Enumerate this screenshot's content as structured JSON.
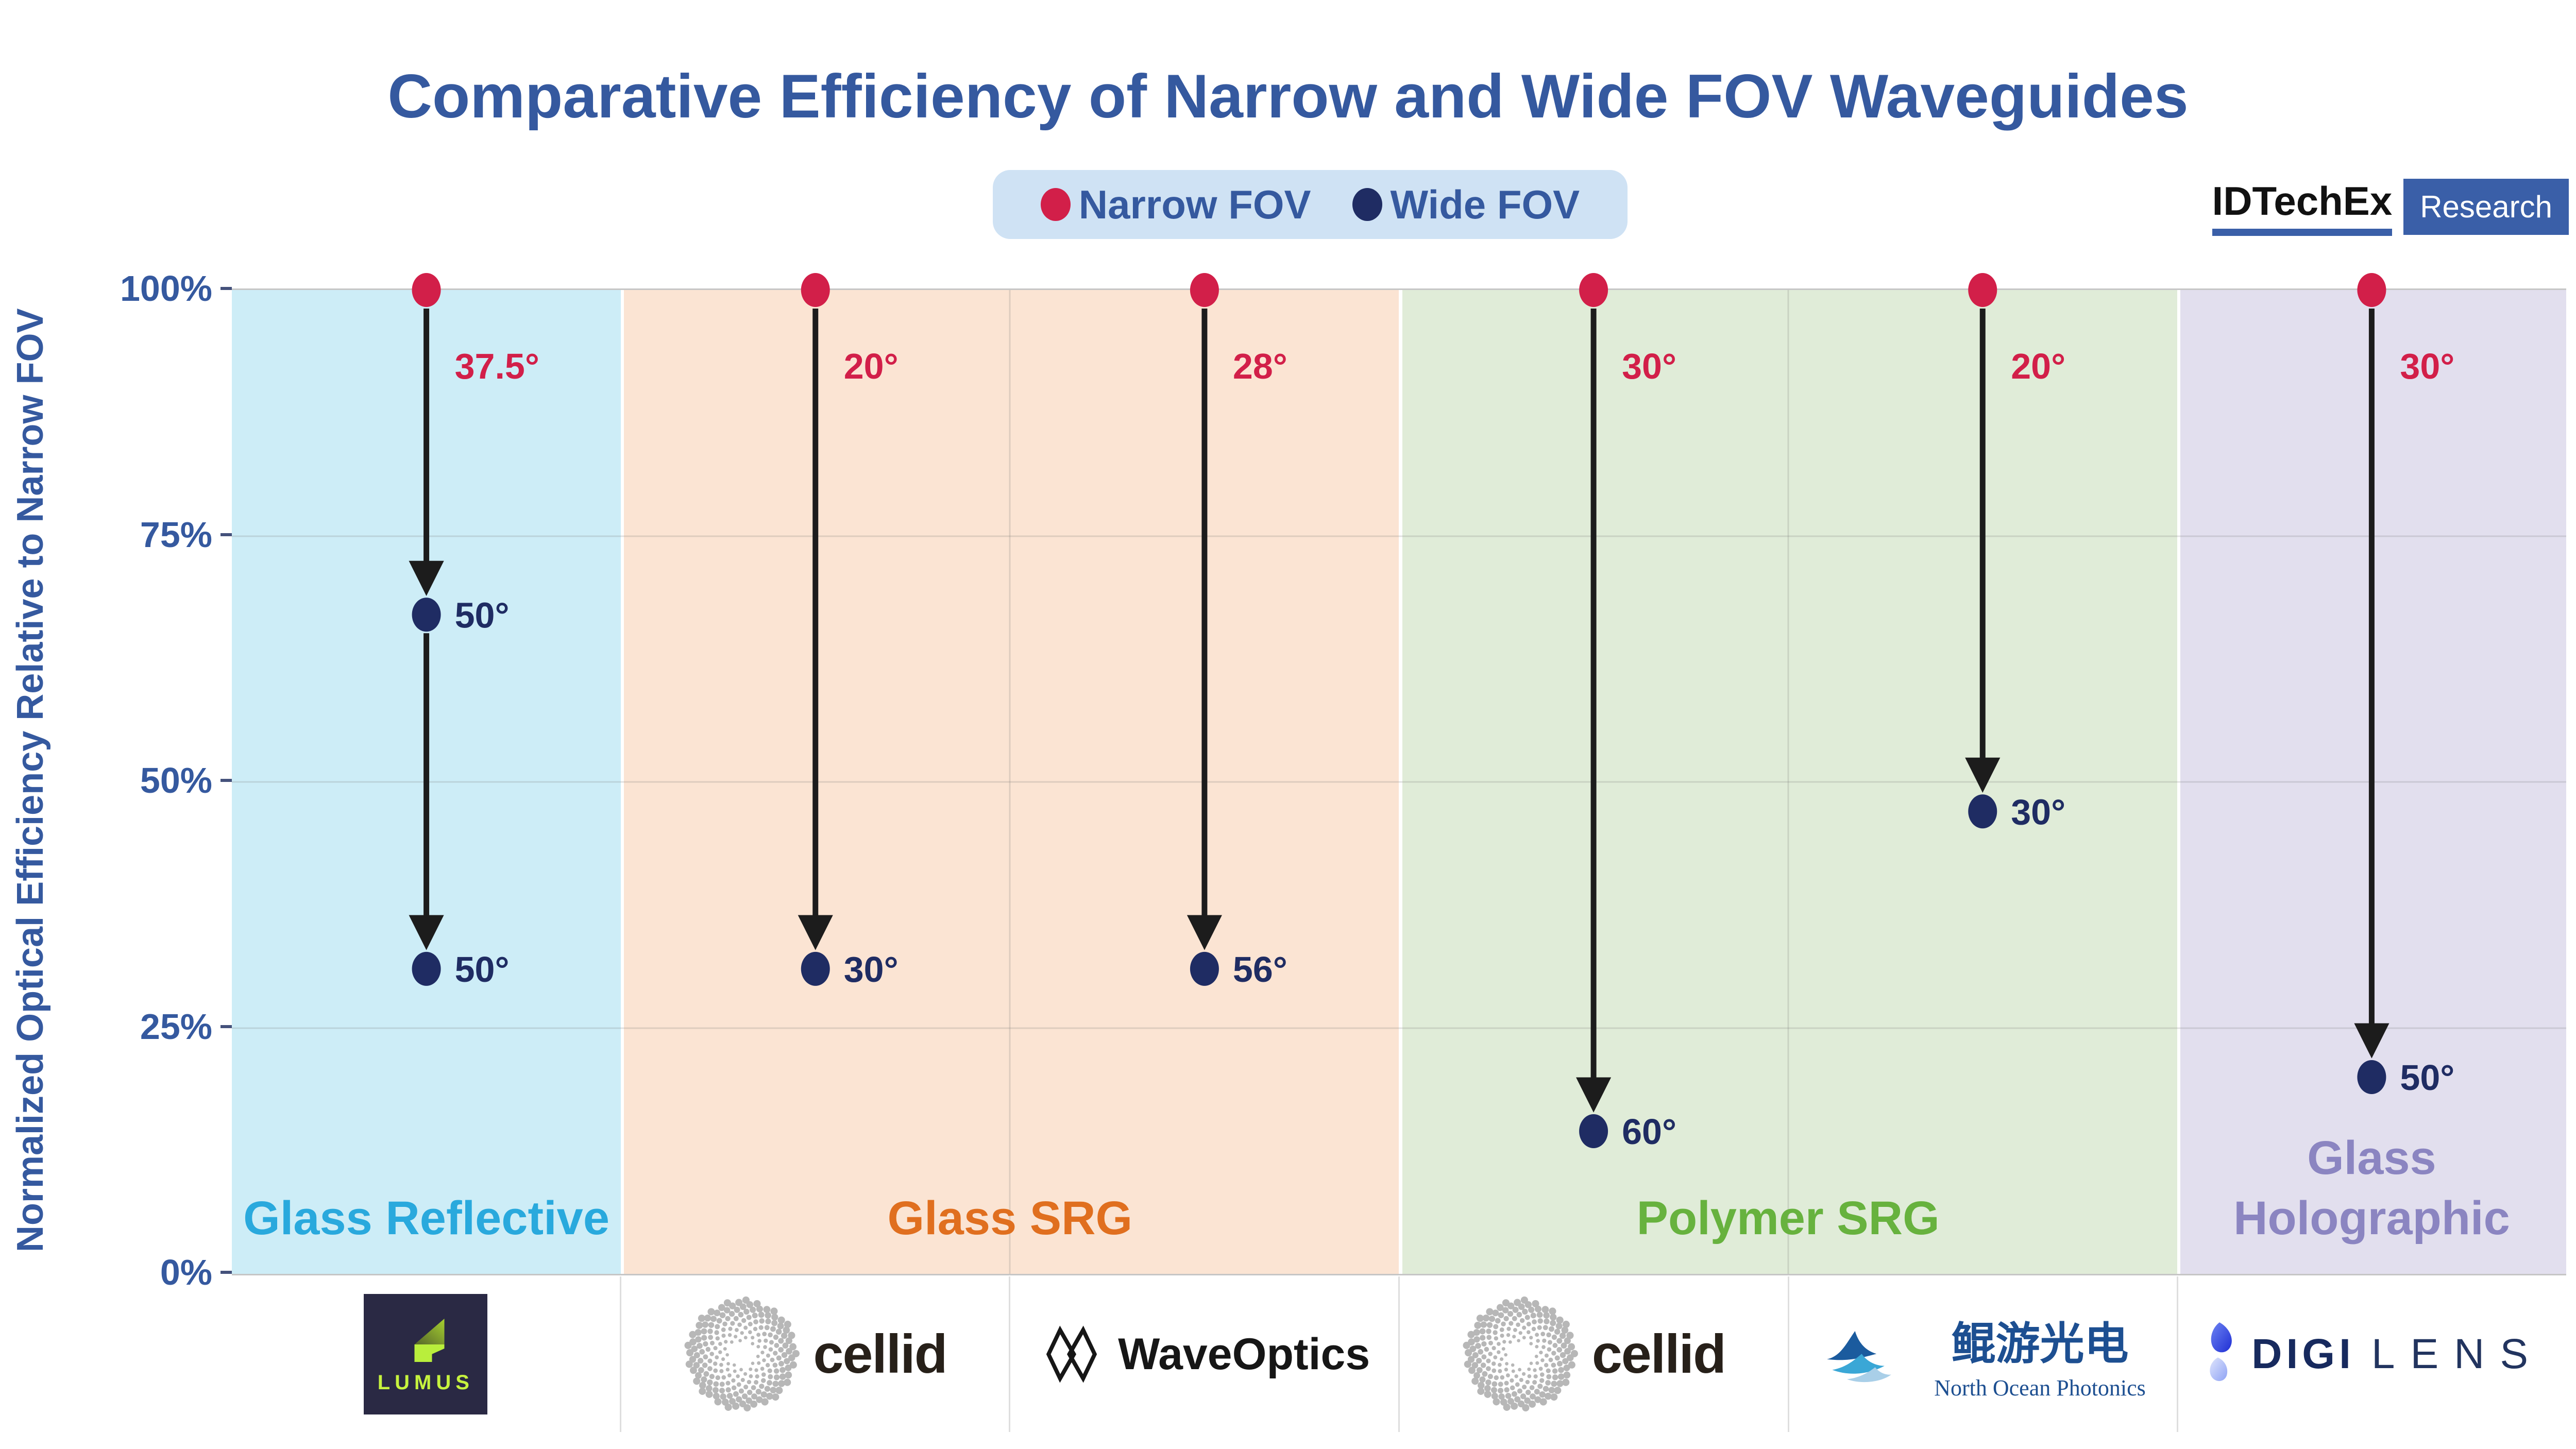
{
  "title": "Comparative Efficiency of Narrow and Wide FOV Waveguides",
  "legend": {
    "background": "#cfe2f4",
    "items": [
      {
        "label": "Narrow FOV",
        "color": "#d21f49"
      },
      {
        "label": "Wide FOV",
        "color": "#1f2c63"
      }
    ]
  },
  "brand": {
    "name": "IDTechEx",
    "division": "Research",
    "accent": "#3a5fa8"
  },
  "y_axis": {
    "label": "Normalized Optical Efficiency Relative to Narrow FOV",
    "ticks": [
      "100%",
      "75%",
      "50%",
      "25%",
      "0%"
    ],
    "range": [
      0,
      100
    ]
  },
  "chart_data": {
    "type": "scatter",
    "title": "Comparative Efficiency of Narrow and Wide FOV Waveguides",
    "ylabel": "Normalized Optical Efficiency Relative to Narrow FOV",
    "ylim": [
      0,
      100
    ],
    "y_unit": "%",
    "grid": true,
    "legend_position": "top",
    "narrow_color": "#d21f49",
    "wide_color": "#1f2c63",
    "arrow_color": "#1c1c1c",
    "groups": [
      {
        "label": "Glass Reflective",
        "band_color": "#cdedf7",
        "label_color": "#29a9dd",
        "columns": [
          0
        ]
      },
      {
        "label": "Glass SRG",
        "band_color": "#fbe4d3",
        "label_color": "#e06f1f",
        "columns": [
          1,
          2
        ]
      },
      {
        "label": "Polymer SRG",
        "band_color": "#e0ecd8",
        "label_color": "#67b23e",
        "columns": [
          3,
          4
        ]
      },
      {
        "label": "Glass Holographic",
        "band_color": "#e2dfee",
        "label_color": "#8b85c1",
        "columns": [
          5
        ]
      }
    ],
    "columns": [
      {
        "vendor": "Lumus",
        "narrow": {
          "fov": "37.5°",
          "efficiency_pct": 100
        },
        "wide": [
          {
            "fov": "50°",
            "efficiency_pct": 67
          },
          {
            "fov": "50°",
            "efficiency_pct": 31
          }
        ]
      },
      {
        "vendor": "Cellid",
        "narrow": {
          "fov": "20°",
          "efficiency_pct": 100
        },
        "wide": [
          {
            "fov": "30°",
            "efficiency_pct": 31
          }
        ]
      },
      {
        "vendor": "WaveOptics",
        "narrow": {
          "fov": "28°",
          "efficiency_pct": 100
        },
        "wide": [
          {
            "fov": "56°",
            "efficiency_pct": 31
          }
        ]
      },
      {
        "vendor": "Cellid",
        "narrow": {
          "fov": "30°",
          "efficiency_pct": 100
        },
        "wide": [
          {
            "fov": "60°",
            "efficiency_pct": 14.5
          }
        ]
      },
      {
        "vendor": "North Ocean Photonics",
        "narrow": {
          "fov": "20°",
          "efficiency_pct": 100
        },
        "wide": [
          {
            "fov": "30°",
            "efficiency_pct": 47
          }
        ]
      },
      {
        "vendor": "DigiLens",
        "narrow": {
          "fov": "30°",
          "efficiency_pct": 100
        },
        "wide": [
          {
            "fov": "50°",
            "efficiency_pct": 20
          }
        ]
      }
    ]
  },
  "logos": [
    {
      "name": "Lumus",
      "text": "LUMUS"
    },
    {
      "name": "Cellid",
      "text": "cellid"
    },
    {
      "name": "WaveOptics",
      "text": "WaveOptics"
    },
    {
      "name": "Cellid",
      "text": "cellid"
    },
    {
      "name": "North Ocean Photonics",
      "text_cn": "鲲游光电",
      "text_en": "North Ocean Photonics"
    },
    {
      "name": "DigiLens",
      "text_left": "DIGI",
      "text_right": "LENS"
    }
  ]
}
